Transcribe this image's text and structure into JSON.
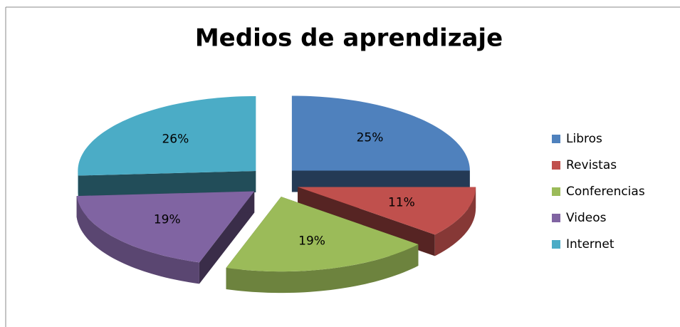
{
  "chart_data": {
    "type": "pie",
    "title": "Medios de aprendizaje",
    "categories": [
      "Libros",
      "Revistas",
      "Conferencias",
      "Videos",
      "Internet"
    ],
    "values": [
      25,
      11,
      19,
      19,
      26
    ],
    "value_labels": [
      "25%",
      "11%",
      "19%",
      "19%",
      "26%"
    ],
    "colors": [
      "#4f81bd",
      "#c0504d",
      "#9bbb59",
      "#8064a2",
      "#4bacc6"
    ],
    "legend": "right"
  }
}
